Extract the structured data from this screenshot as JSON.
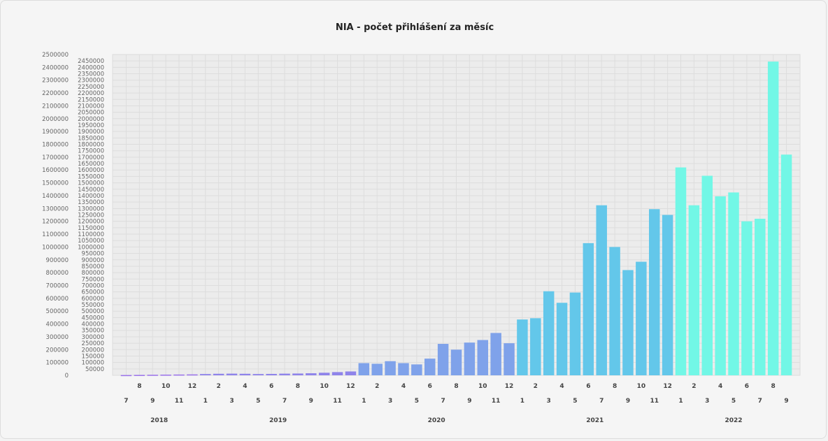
{
  "chart_data": {
    "type": "bar",
    "title": "NIA - počet přihlášení za měsíc",
    "xlabel": "",
    "ylabel": "",
    "ylim": [
      0,
      2500000
    ],
    "y_ticks_outer": [
      "0",
      "100000",
      "200000",
      "300000",
      "400000",
      "500000",
      "600000",
      "700000",
      "800000",
      "900000",
      "1000000",
      "1100000",
      "1200000",
      "1300000",
      "1400000",
      "1500000",
      "1600000",
      "1700000",
      "1800000",
      "1900000",
      "2000000",
      "2100000",
      "2200000",
      "2300000",
      "2400000",
      "2500000"
    ],
    "y_ticks_inner": [
      "50000",
      "100000",
      "150000",
      "200000",
      "250000",
      "300000",
      "350000",
      "400000",
      "450000",
      "500000",
      "550000",
      "600000",
      "650000",
      "700000",
      "750000",
      "800000",
      "850000",
      "900000",
      "950000",
      "1000000",
      "1050000",
      "1100000",
      "1150000",
      "1200000",
      "1250000",
      "1300000",
      "1350000",
      "1400000",
      "1450000",
      "1500000",
      "1550000",
      "1600000",
      "1650000",
      "1700000",
      "1750000",
      "1800000",
      "1850000",
      "1900000",
      "1950000",
      "2000000",
      "2050000",
      "2100000",
      "2150000",
      "2200000",
      "2250000",
      "2300000",
      "2350000",
      "2400000",
      "2450000"
    ],
    "grid": true,
    "years": [
      {
        "label": "2018",
        "months": [
          "7",
          "8",
          "9",
          "10",
          "11",
          "12"
        ]
      },
      {
        "label": "2019",
        "months": [
          "1",
          "2",
          "3",
          "4",
          "5",
          "6",
          "7",
          "8",
          "9",
          "10",
          "11",
          "12"
        ]
      },
      {
        "label": "2020",
        "months": [
          "1",
          "2",
          "3",
          "4",
          "5",
          "6",
          "7",
          "8",
          "9",
          "10",
          "11",
          "12"
        ]
      },
      {
        "label": "2021",
        "months": [
          "1",
          "2",
          "3",
          "4",
          "5",
          "6",
          "7",
          "8",
          "9",
          "10",
          "11",
          "12"
        ]
      },
      {
        "label": "2022",
        "months": [
          "1",
          "2",
          "3",
          "4",
          "5",
          "6",
          "7",
          "8",
          "9"
        ]
      }
    ],
    "values": [
      2000,
      3000,
      4000,
      5000,
      6000,
      7000,
      10000,
      12000,
      13000,
      12000,
      10000,
      11000,
      13000,
      14000,
      16000,
      20000,
      25000,
      30000,
      95000,
      90000,
      110000,
      95000,
      85000,
      130000,
      245000,
      200000,
      255000,
      275000,
      330000,
      250000,
      435000,
      445000,
      655000,
      565000,
      645000,
      1030000,
      1325000,
      1000000,
      820000,
      885000,
      1295000,
      1250000,
      1620000,
      1325000,
      1555000,
      1395000,
      1425000,
      1200000,
      1220000,
      2445000,
      1720000
    ],
    "year_colors": {
      "2018": "#9a72ea",
      "2019": "#8f84ea",
      "2020": "#7fa2ea",
      "2021": "#63c7ea",
      "2022": "#72f7e6"
    }
  }
}
